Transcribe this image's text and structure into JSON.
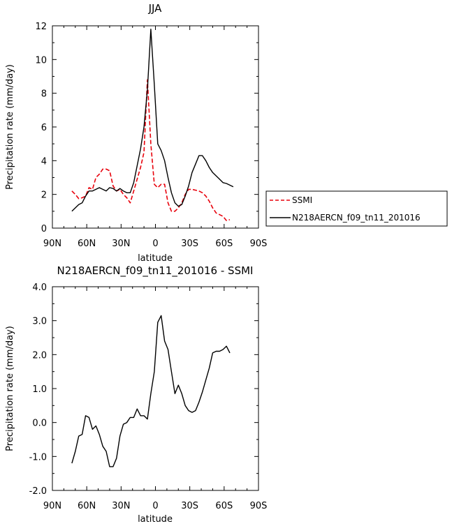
{
  "chart_data": [
    {
      "type": "line",
      "title": "JJA",
      "xlabel": "latitude",
      "ylabel": "Precipitation rate (mm/day)",
      "xticks": [
        "90N",
        "60N",
        "30N",
        "0",
        "30S",
        "60S",
        "90S"
      ],
      "xtick_values": [
        -90,
        -60,
        -30,
        0,
        30,
        60,
        90
      ],
      "yticks": [
        "0",
        "2",
        "4",
        "6",
        "8",
        "10",
        "12"
      ],
      "ytick_values": [
        0,
        2,
        4,
        6,
        8,
        10,
        12
      ],
      "xlim": [
        -90,
        90
      ],
      "ylim": [
        0,
        12
      ],
      "legend_position": "right",
      "series": [
        {
          "name": "SSMI",
          "color": "#e8000b",
          "style": "dashed",
          "x": [
            -73,
            -70,
            -67,
            -64,
            -61,
            -58,
            -55,
            -52,
            -49,
            -46,
            -43,
            -40,
            -37,
            -34,
            -31,
            -28,
            -25,
            -22,
            -19,
            -16,
            -13,
            -10,
            -7,
            -4,
            -1,
            2,
            5,
            8,
            11,
            14,
            17,
            20,
            23,
            26,
            29,
            32,
            35,
            38,
            41,
            44,
            47,
            50,
            53,
            56,
            59,
            62,
            65
          ],
          "y": [
            2.2,
            2.0,
            1.75,
            1.8,
            1.9,
            2.4,
            2.3,
            3.0,
            3.2,
            3.5,
            3.5,
            3.4,
            2.5,
            2.2,
            2.3,
            2.0,
            1.8,
            1.5,
            2.2,
            2.9,
            3.6,
            4.5,
            8.8,
            5.0,
            2.6,
            2.4,
            2.6,
            2.6,
            1.5,
            1.0,
            1.0,
            1.2,
            1.5,
            2.0,
            2.3,
            2.3,
            2.25,
            2.2,
            2.1,
            1.9,
            1.6,
            1.2,
            0.9,
            0.8,
            0.7,
            0.45,
            0.5
          ]
        },
        {
          "name": "N218AERCN_f09_tn11_201016",
          "color": "#000000",
          "style": "solid",
          "x": [
            -73,
            -70,
            -67,
            -64,
            -61,
            -58,
            -55,
            -52,
            -49,
            -46,
            -43,
            -40,
            -37,
            -34,
            -31,
            -28,
            -25,
            -22,
            -19,
            -16,
            -13,
            -10,
            -7,
            -4,
            -1,
            2,
            5,
            8,
            11,
            14,
            17,
            20,
            23,
            26,
            29,
            32,
            35,
            38,
            41,
            44,
            47,
            50,
            53,
            56,
            59,
            62,
            65,
            68
          ],
          "y": [
            1.0,
            1.2,
            1.4,
            1.5,
            1.9,
            2.2,
            2.2,
            2.3,
            2.4,
            2.3,
            2.2,
            2.4,
            2.35,
            2.2,
            2.35,
            2.2,
            2.1,
            2.1,
            2.7,
            3.7,
            4.7,
            6.0,
            8.2,
            11.8,
            8.5,
            5.0,
            4.6,
            4.0,
            3.0,
            2.1,
            1.5,
            1.3,
            1.4,
            1.9,
            2.5,
            3.3,
            3.8,
            4.3,
            4.3,
            4.0,
            3.6,
            3.3,
            3.1,
            2.9,
            2.7,
            2.65,
            2.55,
            2.45
          ]
        }
      ]
    },
    {
      "type": "line",
      "title": "N218AERCN_f09_tn11_201016 - SSMI",
      "xlabel": "latitude",
      "ylabel": "Precipitation rate (mm/day)",
      "xticks": [
        "90N",
        "60N",
        "30N",
        "0",
        "30S",
        "60S",
        "90S"
      ],
      "xtick_values": [
        -90,
        -60,
        -30,
        0,
        30,
        60,
        90
      ],
      "yticks": [
        "-2.0",
        "-1.0",
        "0.0",
        "1.0",
        "2.0",
        "3.0",
        "4.0"
      ],
      "ytick_values": [
        -2,
        -1,
        0,
        1,
        2,
        3,
        4
      ],
      "xlim": [
        -90,
        90
      ],
      "ylim": [
        -2,
        4
      ],
      "series": [
        {
          "color": "#000000",
          "style": "solid",
          "x": [
            -73,
            -70,
            -67,
            -64,
            -61,
            -58,
            -55,
            -52,
            -49,
            -46,
            -43,
            -40,
            -37,
            -34,
            -31,
            -28,
            -25,
            -22,
            -19,
            -16,
            -13,
            -10,
            -7,
            -4,
            -1,
            2,
            5,
            8,
            11,
            14,
            17,
            20,
            23,
            26,
            29,
            32,
            35,
            38,
            41,
            44,
            47,
            50,
            53,
            56,
            59,
            62,
            65
          ],
          "y": [
            -1.2,
            -0.85,
            -0.4,
            -0.35,
            0.2,
            0.15,
            -0.2,
            -0.1,
            -0.35,
            -0.7,
            -0.85,
            -1.3,
            -1.3,
            -1.05,
            -0.4,
            -0.05,
            0.0,
            0.15,
            0.15,
            0.4,
            0.2,
            0.2,
            0.1,
            0.85,
            1.5,
            2.95,
            3.15,
            2.4,
            2.15,
            1.5,
            0.85,
            1.1,
            0.85,
            0.5,
            0.35,
            0.3,
            0.35,
            0.6,
            0.9,
            1.25,
            1.6,
            2.05,
            2.1,
            2.1,
            2.15,
            2.25,
            2.05
          ]
        }
      ]
    }
  ]
}
